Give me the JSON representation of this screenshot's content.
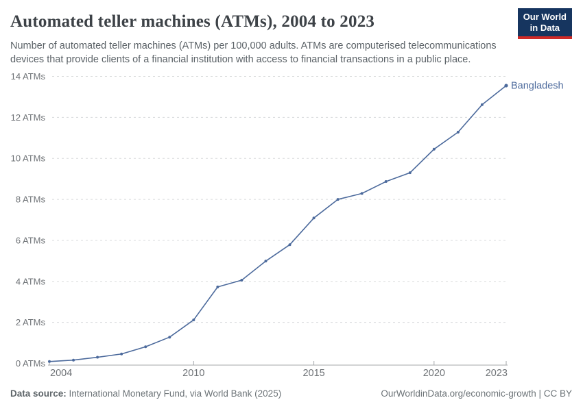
{
  "header": {
    "title": "Automated teller machines (ATMs), 2004 to 2023",
    "subtitle": "Number of automated teller machines (ATMs) per 100,000 adults. ATMs are computerised telecommunications devices that provide clients of a financial institution with access to financial transactions in a public place.",
    "logo": {
      "line1": "Our World",
      "line2": "in Data"
    }
  },
  "chart_data": {
    "type": "line",
    "title": "Automated teller machines (ATMs), 2004 to 2023",
    "x": [
      2004,
      2005,
      2006,
      2007,
      2008,
      2009,
      2010,
      2011,
      2012,
      2013,
      2014,
      2015,
      2016,
      2017,
      2018,
      2019,
      2020,
      2021,
      2022,
      2023
    ],
    "series": [
      {
        "name": "Bangladesh",
        "color": "#4c6a9c",
        "values": [
          0.09,
          0.16,
          0.3,
          0.46,
          0.81,
          1.28,
          2.12,
          3.73,
          4.06,
          4.99,
          5.79,
          7.09,
          8.0,
          8.29,
          8.87,
          9.3,
          10.45,
          11.28,
          12.62,
          13.55
        ]
      }
    ],
    "xlim": [
      2004,
      2023
    ],
    "ylim": [
      0,
      14
    ],
    "x_ticks": [
      2004,
      2010,
      2015,
      2020,
      2023
    ],
    "y_ticks": [
      0,
      2,
      4,
      6,
      8,
      10,
      12,
      14
    ],
    "y_tick_suffix": " ATMs",
    "grid": "horizontal-dashed",
    "legend_position": "end-of-line-label"
  },
  "footer": {
    "source_label": "Data source:",
    "source_text": " International Monetary Fund, via World Bank (2025)",
    "link": "OurWorldinData.org/economic-growth",
    "separator": " | ",
    "license": "CC BY"
  },
  "colors": {
    "line": "#4c6a9c",
    "grid": "#d8dadb",
    "axis": "#a3a7aa",
    "tick_text": "#6e7276",
    "logo_bg": "#16355f",
    "logo_red": "#cf2a27"
  }
}
